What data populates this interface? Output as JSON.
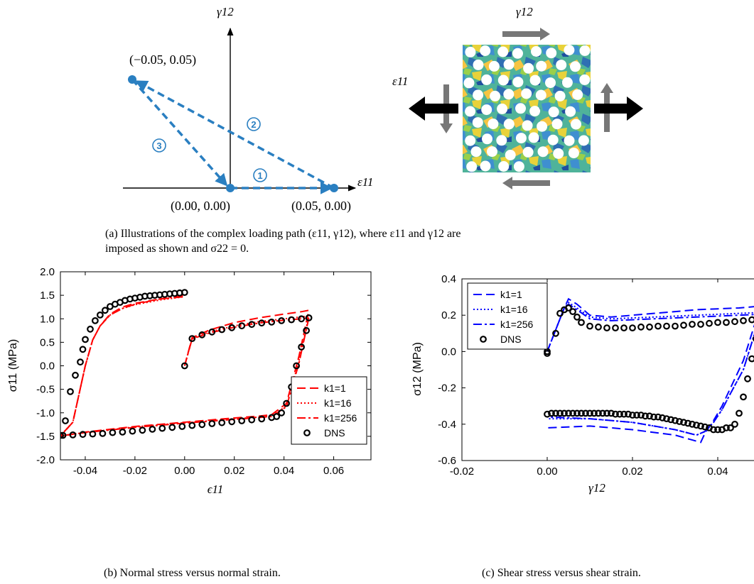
{
  "loading_path": {
    "y_axis_label": "γ12",
    "x_axis_label": "ε11",
    "points": [
      {
        "label": "(−0.05, 0.05)"
      },
      {
        "label": "(0.00, 0.00)"
      },
      {
        "label": "(0.05, 0.00)"
      }
    ],
    "steps": [
      "1",
      "2",
      "3"
    ],
    "accent_color": "#2a7fc1"
  },
  "microstructure": {
    "shear_label": "γ12",
    "normal_label": "ε11"
  },
  "caption_a": {
    "line1": "(a) Illustrations of the complex loading path (ε11, γ12), where ε11 and γ12 are",
    "line2": "imposed as shown and σ22 = 0."
  },
  "caption_b": "(b) Normal stress versus normal strain.",
  "caption_c": "(c) Shear stress versus shear strain.",
  "chart_data": [
    {
      "type": "line",
      "xlabel": "ϵ11",
      "ylabel": "σ11 (MPa)",
      "xlim": [
        -0.05,
        0.075
      ],
      "ylim": [
        -2.0,
        2.0
      ],
      "xticks": [
        "-0.04",
        "-0.02",
        "0.00",
        "0.02",
        "0.04",
        "0.06"
      ],
      "yticks": [
        "2.0",
        "1.5",
        "1.0",
        "0.5",
        "0.0",
        "-0.5",
        "-1.0",
        "-1.5",
        "-2.0"
      ],
      "legend_position": "lower-right",
      "series": [
        {
          "name": "k1=1",
          "style": "dashed",
          "color": "#ff0000",
          "x": [
            0.0,
            0.003,
            0.01,
            0.02,
            0.03,
            0.04,
            0.047,
            0.05,
            0.046,
            0.041,
            0.035,
            0.03,
            0.02,
            0.0,
            -0.02,
            -0.04,
            -0.05,
            -0.045,
            -0.04,
            -0.037,
            -0.034,
            -0.03,
            -0.025,
            -0.02,
            -0.01,
            0.0
          ],
          "y": [
            0.0,
            0.6,
            0.76,
            0.92,
            1.02,
            1.1,
            1.15,
            1.18,
            0.2,
            -0.8,
            -1.04,
            -1.07,
            -1.11,
            -1.2,
            -1.29,
            -1.41,
            -1.5,
            -1.2,
            0.0,
            0.55,
            0.85,
            1.1,
            1.25,
            1.33,
            1.42,
            1.47
          ]
        },
        {
          "name": "k1=16",
          "style": "dotted",
          "color": "#ff0000",
          "x": [
            0.0,
            0.003,
            0.01,
            0.02,
            0.03,
            0.04,
            0.047,
            0.05,
            0.046,
            0.041,
            0.035,
            0.03,
            0.02,
            0.0,
            -0.02,
            -0.04,
            -0.05,
            -0.045,
            -0.04,
            -0.037,
            -0.034,
            -0.03,
            -0.025,
            -0.02,
            -0.01,
            0.0
          ],
          "y": [
            0.0,
            0.58,
            0.72,
            0.85,
            0.94,
            1.0,
            1.04,
            1.06,
            0.1,
            -0.85,
            -1.07,
            -1.09,
            -1.13,
            -1.21,
            -1.3,
            -1.42,
            -1.49,
            -1.2,
            0.0,
            0.55,
            0.85,
            1.08,
            1.22,
            1.3,
            1.4,
            1.47
          ]
        },
        {
          "name": "k1=256",
          "style": "dashdot",
          "color": "#ff0000",
          "x": [
            0.0,
            0.003,
            0.01,
            0.02,
            0.03,
            0.04,
            0.047,
            0.05,
            0.046,
            0.041,
            0.035,
            0.03,
            0.02,
            0.0,
            -0.02,
            -0.04,
            -0.05,
            -0.045,
            -0.04,
            -0.037,
            -0.034,
            -0.03,
            -0.025,
            -0.02,
            -0.01,
            0.0
          ],
          "y": [
            0.0,
            0.57,
            0.7,
            0.82,
            0.91,
            0.97,
            1.0,
            1.02,
            0.05,
            -0.87,
            -1.08,
            -1.1,
            -1.14,
            -1.22,
            -1.31,
            -1.42,
            -1.49,
            -1.2,
            0.0,
            0.55,
            0.85,
            1.08,
            1.22,
            1.31,
            1.42,
            1.5
          ]
        },
        {
          "name": "DNS",
          "style": "markers",
          "color": "#000000",
          "x": [
            0.0,
            0.003,
            0.007,
            0.011,
            0.015,
            0.019,
            0.023,
            0.027,
            0.031,
            0.035,
            0.039,
            0.043,
            0.047,
            0.05,
            0.049,
            0.047,
            0.045,
            0.043,
            0.041,
            0.039,
            0.037,
            0.035,
            0.031,
            0.027,
            0.023,
            0.019,
            0.015,
            0.011,
            0.007,
            0.003,
            -0.001,
            -0.005,
            -0.009,
            -0.013,
            -0.017,
            -0.021,
            -0.025,
            -0.029,
            -0.033,
            -0.037,
            -0.041,
            -0.045,
            -0.049,
            -0.05,
            -0.048,
            -0.046,
            -0.044,
            -0.042,
            -0.041,
            -0.04,
            -0.038,
            -0.036,
            -0.034,
            -0.032,
            -0.03,
            -0.028,
            -0.026,
            -0.024,
            -0.022,
            -0.02,
            -0.018,
            -0.016,
            -0.014,
            -0.012,
            -0.01,
            -0.008,
            -0.006,
            -0.004,
            -0.002,
            0.0
          ],
          "y": [
            0.0,
            0.58,
            0.66,
            0.72,
            0.77,
            0.81,
            0.85,
            0.88,
            0.91,
            0.93,
            0.96,
            0.98,
            1.0,
            1.02,
            0.75,
            0.4,
            0.0,
            -0.45,
            -0.8,
            -1.0,
            -1.08,
            -1.1,
            -1.13,
            -1.15,
            -1.17,
            -1.19,
            -1.21,
            -1.23,
            -1.25,
            -1.27,
            -1.29,
            -1.31,
            -1.33,
            -1.35,
            -1.37,
            -1.39,
            -1.41,
            -1.42,
            -1.44,
            -1.45,
            -1.46,
            -1.47,
            -1.48,
            -1.48,
            -1.17,
            -0.55,
            -0.2,
            0.08,
            0.35,
            0.56,
            0.78,
            0.96,
            1.08,
            1.18,
            1.26,
            1.31,
            1.35,
            1.39,
            1.42,
            1.44,
            1.46,
            1.48,
            1.49,
            1.5,
            1.51,
            1.52,
            1.53,
            1.54,
            1.55,
            1.56
          ]
        }
      ]
    },
    {
      "type": "line",
      "xlabel": "γ12",
      "ylabel": "σ12 (MPa)",
      "xlim": [
        -0.02,
        0.05
      ],
      "ylim": [
        -0.6,
        0.4
      ],
      "xticks": [
        "-0.02",
        "0.00",
        "0.02",
        "0.04"
      ],
      "yticks": [
        "0.4",
        "0.2",
        "0.0",
        "-0.2",
        "-0.4",
        "-0.6"
      ],
      "legend_position": "top-left",
      "series": [
        {
          "name": "k1=1",
          "style": "dashed",
          "color": "#0000ff",
          "x": [
            0.0,
            0.002,
            0.004,
            0.005,
            0.007,
            0.01,
            0.015,
            0.02,
            0.025,
            0.03,
            0.035,
            0.04,
            0.045,
            0.05,
            0.048,
            0.046,
            0.043,
            0.041,
            0.039,
            0.037,
            0.036,
            0.03,
            0.02,
            0.01,
            0.0
          ],
          "y": [
            0.0,
            0.12,
            0.24,
            0.29,
            0.26,
            0.2,
            0.19,
            0.2,
            0.21,
            0.22,
            0.23,
            0.235,
            0.24,
            0.25,
            0.1,
            -0.05,
            -0.2,
            -0.3,
            -0.38,
            -0.45,
            -0.5,
            -0.46,
            -0.43,
            -0.41,
            -0.42
          ]
        },
        {
          "name": "k1=16",
          "style": "dotted",
          "color": "#0000ff",
          "x": [
            0.0,
            0.002,
            0.004,
            0.005,
            0.007,
            0.01,
            0.015,
            0.02,
            0.025,
            0.03,
            0.035,
            0.04,
            0.045,
            0.05,
            0.048,
            0.046,
            0.043,
            0.041,
            0.039,
            0.037,
            0.035,
            0.03,
            0.02,
            0.01,
            0.0
          ],
          "y": [
            0.0,
            0.12,
            0.24,
            0.27,
            0.24,
            0.19,
            0.18,
            0.185,
            0.19,
            0.195,
            0.2,
            0.205,
            0.21,
            0.215,
            0.05,
            -0.1,
            -0.23,
            -0.32,
            -0.39,
            -0.44,
            -0.46,
            -0.43,
            -0.39,
            -0.37,
            -0.37
          ]
        },
        {
          "name": "k1=256",
          "style": "dashdot",
          "color": "#0000ff",
          "x": [
            0.0,
            0.002,
            0.004,
            0.005,
            0.007,
            0.01,
            0.015,
            0.02,
            0.025,
            0.03,
            0.035,
            0.04,
            0.045,
            0.05,
            0.048,
            0.046,
            0.043,
            0.041,
            0.039,
            0.037,
            0.035,
            0.03,
            0.02,
            0.01,
            0.0
          ],
          "y": [
            0.0,
            0.12,
            0.24,
            0.26,
            0.23,
            0.18,
            0.17,
            0.175,
            0.18,
            0.185,
            0.19,
            0.195,
            0.2,
            0.205,
            0.05,
            -0.1,
            -0.23,
            -0.32,
            -0.39,
            -0.44,
            -0.46,
            -0.43,
            -0.39,
            -0.37,
            -0.36
          ]
        },
        {
          "name": "DNS",
          "style": "markers",
          "color": "#000000",
          "x": [
            0.0,
            0.0,
            0.002,
            0.003,
            0.004,
            0.005,
            0.006,
            0.007,
            0.008,
            0.01,
            0.012,
            0.014,
            0.016,
            0.018,
            0.02,
            0.022,
            0.024,
            0.026,
            0.028,
            0.03,
            0.032,
            0.034,
            0.036,
            0.038,
            0.04,
            0.042,
            0.044,
            0.046,
            0.048,
            0.05,
            0.049,
            0.048,
            0.047,
            0.046,
            0.045,
            0.044,
            0.043,
            0.042,
            0.041,
            0.04,
            0.039,
            0.038,
            0.037,
            0.036,
            0.035,
            0.034,
            0.033,
            0.032,
            0.031,
            0.03,
            0.029,
            0.028,
            0.027,
            0.026,
            0.025,
            0.024,
            0.023,
            0.022,
            0.021,
            0.02,
            0.019,
            0.018,
            0.017,
            0.016,
            0.015,
            0.014,
            0.013,
            0.012,
            0.011,
            0.01,
            0.009,
            0.008,
            0.007,
            0.006,
            0.005,
            0.004,
            0.003,
            0.002,
            0.001,
            0.0
          ],
          "y": [
            -0.01,
            0.0,
            0.1,
            0.21,
            0.23,
            0.24,
            0.22,
            0.19,
            0.16,
            0.14,
            0.135,
            0.13,
            0.13,
            0.13,
            0.13,
            0.135,
            0.135,
            0.14,
            0.14,
            0.14,
            0.145,
            0.15,
            0.15,
            0.155,
            0.16,
            0.16,
            0.165,
            0.17,
            0.175,
            0.18,
            0.07,
            -0.04,
            -0.15,
            -0.25,
            -0.34,
            -0.4,
            -0.42,
            -0.42,
            -0.43,
            -0.43,
            -0.43,
            -0.42,
            -0.415,
            -0.41,
            -0.405,
            -0.4,
            -0.395,
            -0.39,
            -0.385,
            -0.38,
            -0.375,
            -0.37,
            -0.365,
            -0.36,
            -0.36,
            -0.355,
            -0.355,
            -0.35,
            -0.35,
            -0.35,
            -0.345,
            -0.345,
            -0.345,
            -0.345,
            -0.34,
            -0.34,
            -0.34,
            -0.34,
            -0.34,
            -0.34,
            -0.34,
            -0.34,
            -0.34,
            -0.34,
            -0.34,
            -0.34,
            -0.34,
            -0.34,
            -0.34,
            -0.345
          ]
        }
      ]
    }
  ]
}
